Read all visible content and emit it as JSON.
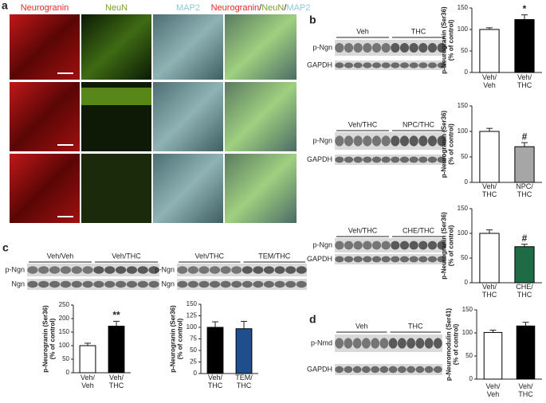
{
  "panel_labels": [
    "a",
    "b",
    "c",
    "d"
  ],
  "micrograph_headers": [
    "Neurogranin",
    "NeuN",
    "MAP2"
  ],
  "merge_header": [
    "Neurogranin",
    "/",
    "NeuN",
    "/",
    "MAP2"
  ],
  "blots": [
    {
      "groups": [
        "Veh",
        "THC"
      ],
      "rows": [
        "p-Ngn",
        "GAPDH"
      ]
    },
    {
      "groups": [
        "Veh/THC",
        "NPC/THC"
      ],
      "rows": [
        "p-Ngn",
        "GAPDH"
      ]
    },
    {
      "groups": [
        "Veh/THC",
        "CHE/THC"
      ],
      "rows": [
        "p-Ngn",
        "GAPDH"
      ]
    },
    {
      "groups": [
        "Veh/Veh",
        "Veh/THC"
      ],
      "rows": [
        "p-Ngn",
        "Ngn"
      ]
    },
    {
      "groups": [
        "Veh/THC",
        "TEM/THC"
      ],
      "rows": [
        "p-Ngn",
        "Ngn"
      ]
    },
    {
      "groups": [
        "Veh",
        "THC"
      ],
      "rows": [
        "p-Nmd",
        "GAPDH"
      ]
    }
  ],
  "chart_data": [
    {
      "type": "bar",
      "ylabel": "p-Neurogranin (Ser36)\n(% of control)",
      "categories": [
        "Veh/\nVeh",
        "Veh/\nTHC"
      ],
      "values": [
        100,
        123
      ],
      "errors": [
        4,
        11
      ],
      "colors": [
        "#ffffff",
        "#000000"
      ],
      "significance": [
        null,
        "*"
      ],
      "ylim": [
        0,
        150
      ],
      "yticks": [
        0,
        50,
        100,
        150
      ]
    },
    {
      "type": "bar",
      "ylabel": "p-Neurogranin (Ser36)\n(% of control)",
      "categories": [
        "Veh/\nTHC",
        "NPC/\nTHC"
      ],
      "values": [
        100,
        70
      ],
      "errors": [
        6,
        8
      ],
      "colors": [
        "#ffffff",
        "#a6a6a6"
      ],
      "significance": [
        null,
        "#"
      ],
      "ylim": [
        0,
        150
      ],
      "yticks": [
        0,
        50,
        100,
        150
      ]
    },
    {
      "type": "bar",
      "ylabel": "p-Neurogranin (Ser36)\n(% of control)",
      "categories": [
        "Veh/\nTHC",
        "CHE/\nTHC"
      ],
      "values": [
        100,
        73
      ],
      "errors": [
        7,
        5
      ],
      "colors": [
        "#ffffff",
        "#1e6b45"
      ],
      "significance": [
        null,
        "#"
      ],
      "ylim": [
        0,
        150
      ],
      "yticks": [
        0,
        50,
        100,
        150
      ]
    },
    {
      "type": "bar",
      "ylabel": "p-Neurogranin (Ser36)\n(% of control)",
      "categories": [
        "Veh/\nVeh",
        "Veh/\nTHC"
      ],
      "values": [
        100,
        172
      ],
      "errors": [
        9,
        18
      ],
      "colors": [
        "#ffffff",
        "#000000"
      ],
      "significance": [
        null,
        "**"
      ],
      "ylim": [
        0,
        250
      ],
      "yticks": [
        0,
        50,
        100,
        150,
        200,
        250
      ]
    },
    {
      "type": "bar",
      "ylabel": "p-Neurogranin (Ser36)\n(% of control)",
      "categories": [
        "Veh/\nTHC",
        "TEM/\nTHC"
      ],
      "values": [
        100,
        97
      ],
      "errors": [
        12,
        16
      ],
      "colors": [
        "#000000",
        "#1f4e8c"
      ],
      "significance": [
        null,
        null
      ],
      "ylim": [
        0,
        150
      ],
      "yticks": [
        0,
        25,
        50,
        75,
        100,
        125,
        150
      ]
    },
    {
      "type": "bar",
      "ylabel": "p-Neuromodulin (Ser41)\n(% of control)",
      "categories": [
        "Veh/\nVeh",
        "Veh/\nTHC"
      ],
      "values": [
        101,
        115
      ],
      "errors": [
        5,
        8
      ],
      "colors": [
        "#ffffff",
        "#000000"
      ],
      "significance": [
        null,
        null
      ],
      "ylim": [
        0,
        150
      ],
      "yticks": [
        0,
        50,
        100,
        150
      ]
    }
  ]
}
